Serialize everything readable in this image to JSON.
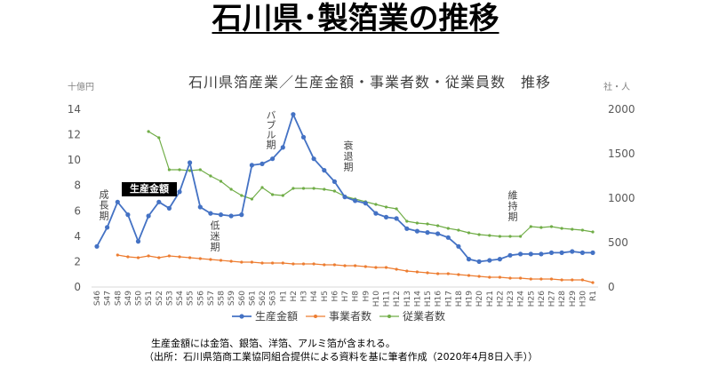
{
  "page": {
    "title": "石川県･製箔業の推移"
  },
  "chart_data": {
    "type": "line",
    "title": "石川県箔産業／生産金額・事業者数・従業員数　推移",
    "y_left_unit": "十億円",
    "y_right_unit": "社・人",
    "ylim_left": [
      0,
      14
    ],
    "yticks_left": [
      0,
      2,
      4,
      6,
      8,
      10,
      12,
      14
    ],
    "ylim_right": [
      0,
      2000
    ],
    "yticks_right": [
      0,
      500,
      1000,
      1500,
      2000
    ],
    "grid": false,
    "legend_position": "bottom",
    "categories": [
      "S46",
      "S47",
      "S48",
      "S49",
      "S50",
      "S51",
      "S52",
      "S53",
      "S54",
      "S55",
      "S56",
      "S57",
      "S58",
      "S59",
      "S60",
      "S61",
      "S62",
      "S63",
      "H1",
      "H2",
      "H3",
      "H4",
      "H5",
      "H6",
      "H7",
      "H8",
      "H9",
      "H10",
      "H11",
      "H12",
      "H13",
      "H14",
      "H15",
      "H16",
      "H17",
      "H18",
      "H19",
      "H20",
      "H21",
      "H22",
      "H23",
      "H24",
      "H25",
      "H26",
      "H27",
      "H28",
      "H29",
      "H30",
      "R1"
    ],
    "series": [
      {
        "name": "生産金額",
        "axis": "left",
        "color": "#4472C4",
        "values": [
          3.2,
          4.7,
          6.7,
          5.7,
          3.6,
          5.6,
          6.7,
          6.2,
          7.5,
          9.8,
          6.3,
          5.8,
          5.7,
          5.6,
          5.7,
          9.6,
          9.7,
          10.1,
          11.0,
          13.6,
          11.8,
          10.1,
          9.2,
          8.3,
          7.1,
          6.8,
          6.6,
          5.8,
          5.5,
          5.4,
          4.6,
          4.4,
          4.3,
          4.2,
          3.9,
          3.2,
          2.2,
          2.0,
          2.1,
          2.2,
          2.5,
          2.6,
          2.6,
          2.6,
          2.7,
          2.7,
          2.8,
          2.7,
          2.7
        ]
      },
      {
        "name": "事業者数",
        "axis": "right",
        "color": "#ED7D31",
        "values": [
          null,
          null,
          360,
          340,
          330,
          350,
          330,
          350,
          340,
          330,
          320,
          310,
          300,
          290,
          280,
          280,
          270,
          270,
          270,
          260,
          260,
          260,
          250,
          250,
          240,
          240,
          230,
          220,
          220,
          200,
          180,
          170,
          160,
          150,
          150,
          140,
          130,
          120,
          110,
          110,
          100,
          100,
          90,
          90,
          90,
          80,
          80,
          80,
          50
        ]
      },
      {
        "name": "従業者数",
        "axis": "right",
        "color": "#70AD47",
        "values": [
          null,
          null,
          null,
          null,
          null,
          1750,
          1680,
          1320,
          1320,
          1310,
          1320,
          1250,
          1190,
          1100,
          1030,
          990,
          1120,
          1040,
          1030,
          1110,
          1110,
          1110,
          1100,
          1080,
          1020,
          990,
          960,
          930,
          900,
          880,
          740,
          720,
          710,
          690,
          660,
          640,
          610,
          590,
          580,
          570,
          570,
          570,
          680,
          670,
          680,
          660,
          650,
          640,
          620
        ]
      }
    ],
    "annotations": {
      "series_label": "生産金額",
      "periods": [
        "成長期",
        "低迷期",
        "バブル期",
        "衰退期",
        "維持期"
      ]
    }
  },
  "notes": [
    "生産金額には金箔、銀箔、洋箔、アルミ箔が含まれる。",
    "（出所：石川県箔商工業協同組合提供による資料を基に筆者作成（2020年4月8日入手））"
  ]
}
